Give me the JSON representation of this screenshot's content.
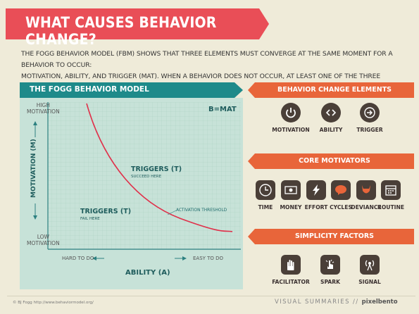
{
  "title": "WHAT CAUSES BEHAVIOR CHANGE?",
  "intro": {
    "line1": "THE FOGG BEHAVIOR MODEL (FBM) SHOWS THAT THREE ELEMENTS MUST CONVERGE AT THE SAME MOMENT FOR A BEHAVIOR TO OCCUR:",
    "line2": "MOTIVATION, ABILITY, AND TRIGGER (MAT). WHEN A BEHAVIOR DOES NOT OCCUR, AT LEAST ONE OF THE THREE ELEMENTS IS MISSING."
  },
  "model": {
    "title": "THE FOGG BEHAVIOR MODEL",
    "formula": "B=MAT",
    "high_motivation_1": "HIGH",
    "high_motivation_2": "MOTIVATION",
    "low_motivation_1": "LOW",
    "low_motivation_2": "MOTIVATION",
    "y_axis": "MOTIVATION (M)",
    "x_axis": "ABILITY (A)",
    "hard": "HARD TO DO",
    "easy": "EASY TO DO",
    "triggers_succeed_title": "TRIGGERS (T)",
    "triggers_succeed_sub": "SUCCEED HERE",
    "triggers_fail_title": "TRIGGERS (T)",
    "triggers_fail_sub": "FAIL HERE",
    "threshold": "ACTIVATION THRESHOLD",
    "colors": {
      "curve": "#e0304a",
      "grid_bg": "#c7e2d8",
      "header": "#1e8a8a"
    }
  },
  "behavior_change": {
    "title": "BEHAVIOR CHANGE ELEMENTS",
    "items": [
      {
        "label": "MOTIVATION",
        "icon": "power-icon"
      },
      {
        "label": "ABILITY",
        "icon": "code-brackets-icon"
      },
      {
        "label": "TRIGGER",
        "icon": "arrow-right-icon"
      }
    ]
  },
  "core_motivators": {
    "title": "CORE MOTIVATORS",
    "items": [
      {
        "label": "TIME",
        "icon": "clock-icon"
      },
      {
        "label": "MONEY",
        "icon": "money-icon"
      },
      {
        "label": "EFFORT",
        "icon": "lightning-icon"
      },
      {
        "label": "CYCLES",
        "icon": "brain-icon"
      },
      {
        "label": "DEVIANCE",
        "icon": "devil-icon"
      },
      {
        "label": "ROUTINE",
        "icon": "calendar-icon"
      }
    ]
  },
  "simplicity": {
    "title": "SIMPLICITY FACTORS",
    "items": [
      {
        "label": "FACILITATOR",
        "icon": "hand-icon"
      },
      {
        "label": "SPARK",
        "icon": "pointer-icon"
      },
      {
        "label": "SIGNAL",
        "icon": "signal-icon"
      }
    ]
  },
  "footer": {
    "credit": "© BJ Fogg http://www.behaviormodel.org/",
    "visual": "VISUAL SUMMARIES //",
    "brand": "pixelbento"
  }
}
